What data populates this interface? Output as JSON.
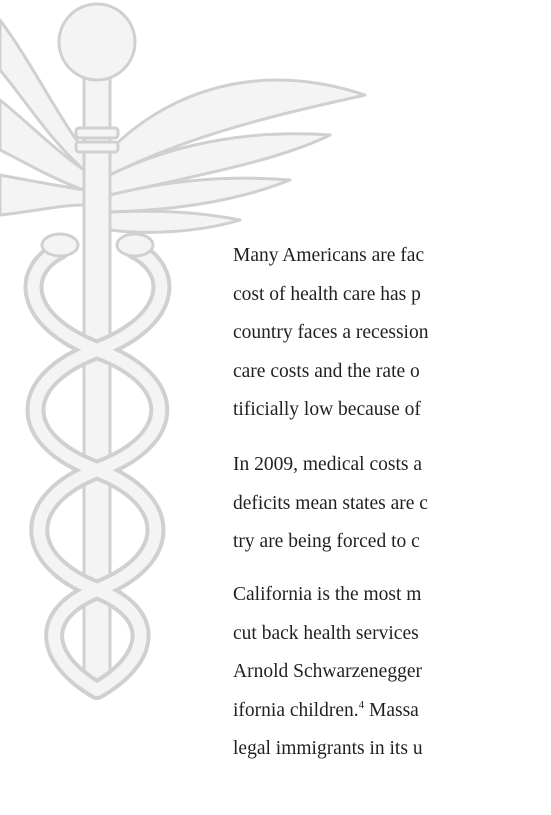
{
  "paragraphs": [
    {
      "lines": [
        "Many Americans are fac",
        "cost of health care has p",
        "country faces a recession",
        "care costs and the rate o",
        "tificially low because of"
      ]
    },
    {
      "lines": [
        "In 2009, medical costs a",
        "deficits mean states are c",
        "try are being forced to c"
      ]
    },
    {
      "lines": [
        "California is the most m",
        "cut back health services",
        "Arnold Schwarzenegger",
        {
          "before": "ifornia children.",
          "footnote": "4",
          "after": " Massa"
        },
        "legal immigrants in its u"
      ]
    }
  ]
}
